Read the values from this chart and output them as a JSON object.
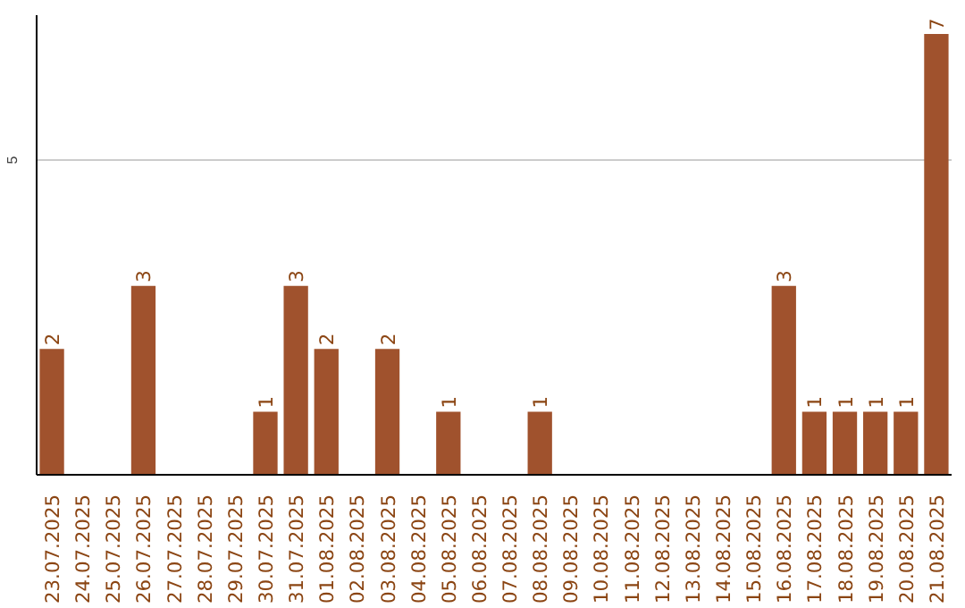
{
  "chart_data": {
    "type": "bar",
    "categories": [
      "23.07.2025",
      "24.07.2025",
      "25.07.2025",
      "26.07.2025",
      "27.07.2025",
      "28.07.2025",
      "29.07.2025",
      "30.07.2025",
      "31.07.2025",
      "01.08.2025",
      "02.08.2025",
      "03.08.2025",
      "04.08.2025",
      "05.08.2025",
      "06.08.2025",
      "07.08.2025",
      "08.08.2025",
      "09.08.2025",
      "10.08.2025",
      "11.08.2025",
      "12.08.2025",
      "13.08.2025",
      "14.08.2025",
      "15.08.2025",
      "16.08.2025",
      "17.08.2025",
      "18.08.2025",
      "19.08.2025",
      "20.08.2025",
      "21.08.2025"
    ],
    "values": [
      2,
      0,
      0,
      3,
      0,
      0,
      0,
      1,
      3,
      2,
      0,
      2,
      0,
      1,
      0,
      0,
      1,
      0,
      0,
      0,
      0,
      0,
      0,
      0,
      3,
      1,
      1,
      1,
      1,
      7
    ],
    "value_labels": [
      "2",
      null,
      null,
      "3",
      null,
      null,
      null,
      "1",
      "3",
      "2",
      null,
      "2",
      null,
      "1",
      null,
      null,
      "1",
      null,
      null,
      null,
      null,
      null,
      null,
      null,
      "3",
      "1",
      "1",
      "1",
      "1",
      "7"
    ],
    "color": "#a0522d",
    "ylim": [
      0,
      7.3
    ],
    "yticks": [
      5
    ],
    "grid": "y"
  }
}
